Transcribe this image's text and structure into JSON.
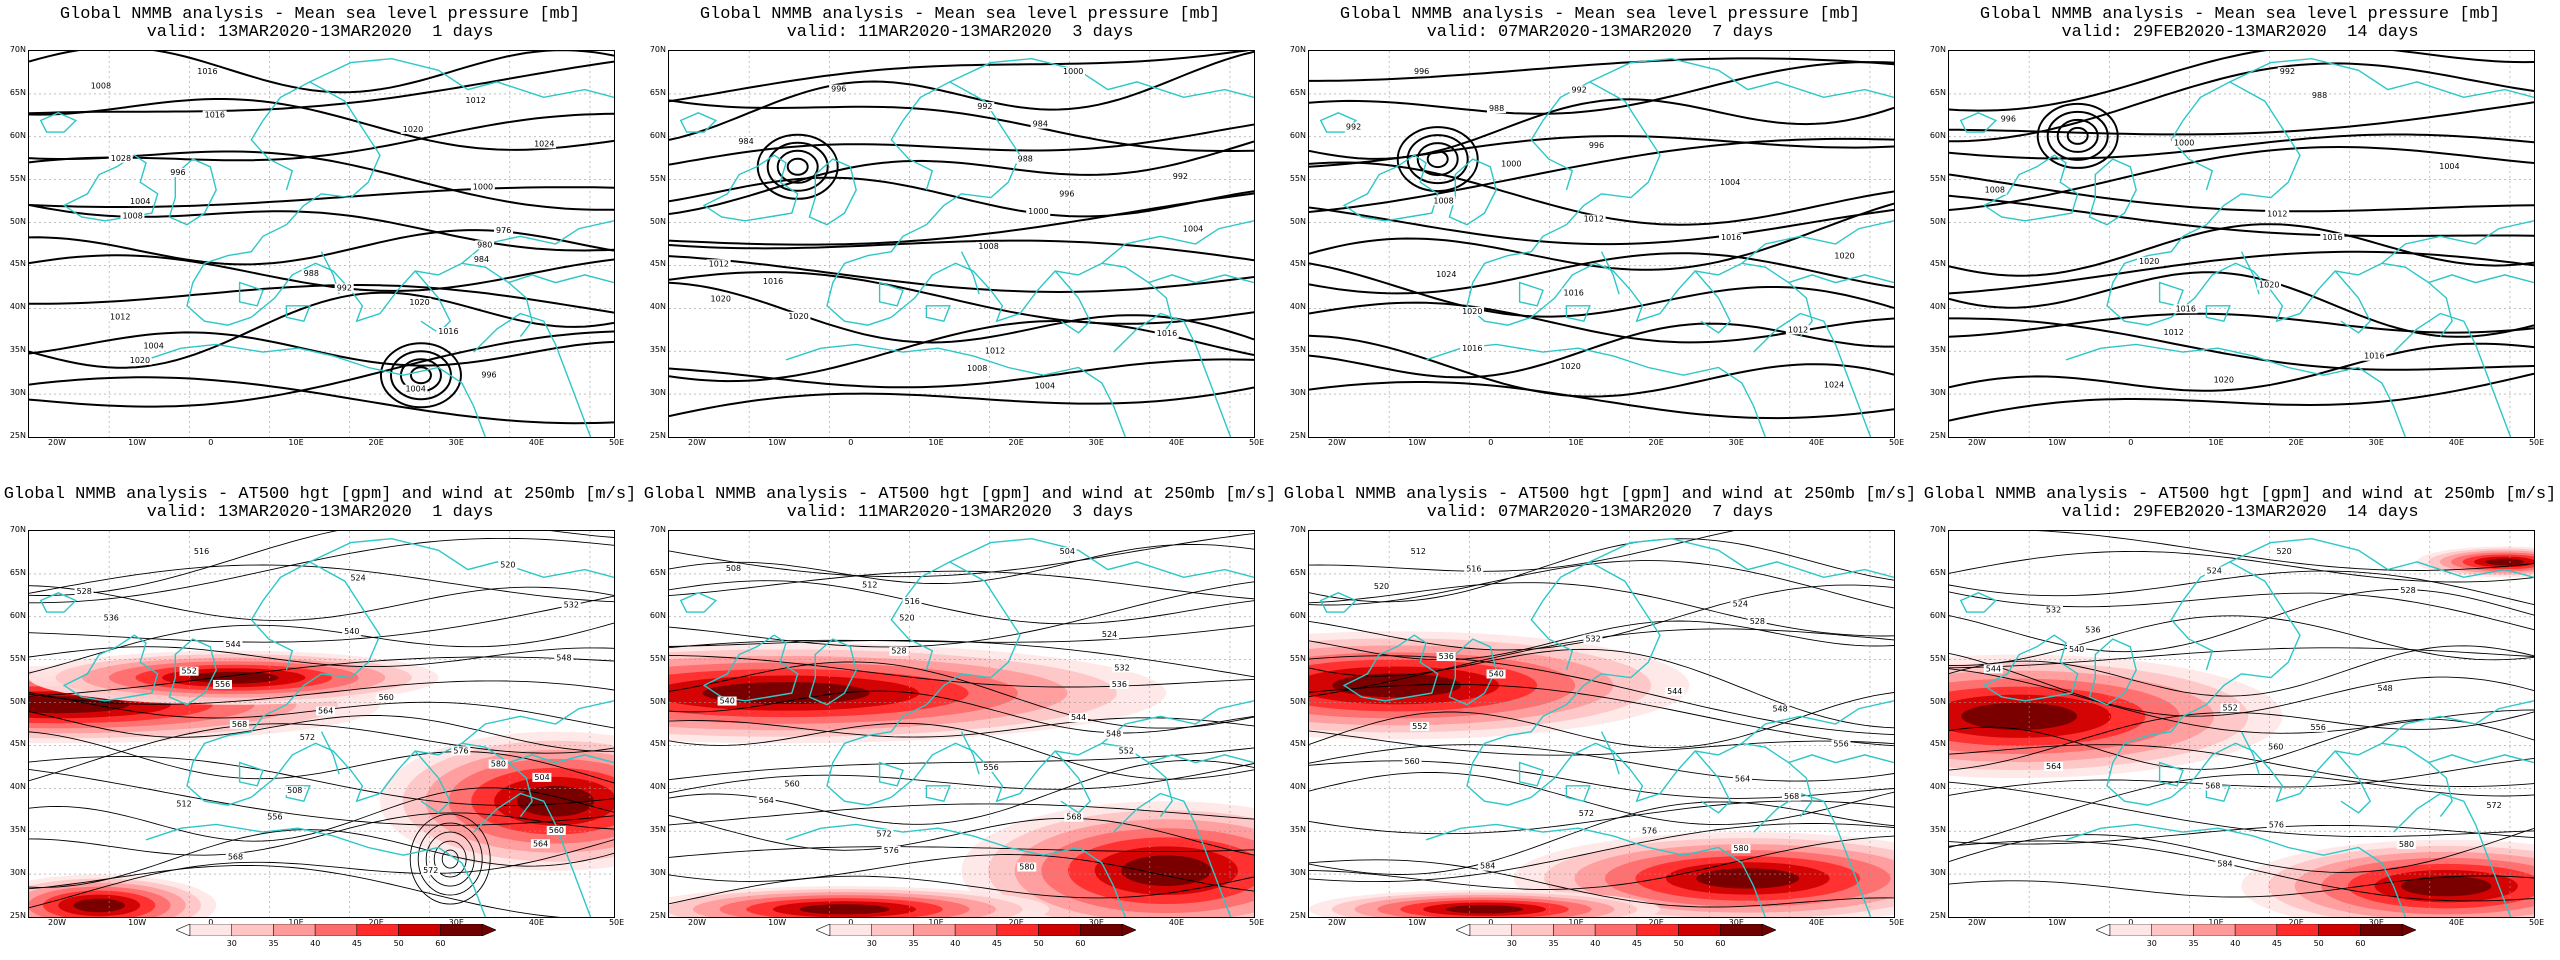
{
  "axes": {
    "lat_labels": [
      "70N",
      "65N",
      "60N",
      "55N",
      "50N",
      "45N",
      "40N",
      "35N",
      "30N",
      "25N"
    ],
    "lon_labels": [
      "20W",
      "10W",
      "0",
      "10E",
      "20E",
      "30E",
      "40E",
      "50E"
    ]
  },
  "colorbar": {
    "ticks": [
      "30",
      "35",
      "40",
      "45",
      "50",
      "60"
    ],
    "colors": [
      "#ffe6e6",
      "#ffc4c4",
      "#ff9a9a",
      "#ff6a6a",
      "#ff2a2a",
      "#d00000",
      "#700000"
    ]
  },
  "colors": {
    "coastline": "#2ec7c7",
    "contour": "#000000",
    "grid": "#999999"
  },
  "top_row": [
    {
      "title": "Global NMMB analysis - Mean sea level pressure [mb]",
      "valid": "valid: 13MAR2020-13MAR2020  1 days",
      "labels": [
        "1016",
        "1008",
        "1012",
        "1016",
        "1020",
        "1024",
        "1028",
        "996",
        "1000",
        "1004",
        "1008",
        "976",
        "980",
        "984",
        "988",
        "992",
        "1020",
        "1012",
        "1016",
        "1004",
        "1020",
        "996",
        "1004"
      ]
    },
    {
      "title": "Global NMMB analysis - Mean sea level pressure [mb]",
      "valid": "valid: 11MAR2020-13MAR2020  3 days",
      "labels": [
        "1000",
        "996",
        "992",
        "984",
        "984",
        "988",
        "992",
        "996",
        "1000",
        "1004",
        "1008",
        "1012",
        "1016",
        "1020",
        "1020",
        "1016",
        "1012",
        "1008",
        "1004"
      ]
    },
    {
      "title": "Global NMMB analysis - Mean sea level pressure [mb]",
      "valid": "valid: 07MAR2020-13MAR2020  7 days",
      "labels": [
        "996",
        "992",
        "988",
        "992",
        "996",
        "1000",
        "1004",
        "1008",
        "1012",
        "1016",
        "1020",
        "1024",
        "1016",
        "1020",
        "1012",
        "1016",
        "1020",
        "1024"
      ]
    },
    {
      "title": "Global NMMB analysis - Mean sea level pressure [mb]",
      "valid": "valid: 29FEB2020-13MAR2020  14 days",
      "labels": [
        "992",
        "988",
        "996",
        "1000",
        "1004",
        "1008",
        "1012",
        "1016",
        "1020",
        "1020",
        "1016",
        "1012",
        "1016",
        "1020"
      ]
    }
  ],
  "bottom_row": [
    {
      "title": "Global NMMB analysis - AT500 hgt [gpm] and wind at 250mb [m/s]",
      "valid": "valid: 13MAR2020-13MAR2020  1 days",
      "labels": [
        "516",
        "520",
        "524",
        "528",
        "532",
        "536",
        "540",
        "544",
        "548",
        "552",
        "556",
        "560",
        "564",
        "568",
        "572",
        "576",
        "580",
        "504",
        "508",
        "512",
        "556",
        "560",
        "564",
        "568",
        "572"
      ]
    },
    {
      "title": "Global NMMB analysis - AT500 hgt [gpm] and wind at 250mb [m/s]",
      "valid": "valid: 11MAR2020-13MAR2020  3 days",
      "labels": [
        "504",
        "508",
        "512",
        "516",
        "520",
        "524",
        "528",
        "532",
        "536",
        "540",
        "544",
        "548",
        "552",
        "556",
        "560",
        "564",
        "568",
        "572",
        "576",
        "580"
      ]
    },
    {
      "title": "Global NMMB analysis - AT500 hgt [gpm] and wind at 250mb [m/s]",
      "valid": "valid: 07MAR2020-13MAR2020  7 days",
      "labels": [
        "512",
        "516",
        "520",
        "524",
        "528",
        "532",
        "536",
        "540",
        "544",
        "548",
        "552",
        "556",
        "560",
        "564",
        "568",
        "572",
        "576",
        "580",
        "584"
      ]
    },
    {
      "title": "Global NMMB analysis - AT500 hgt [gpm] and wind at 250mb [m/s]",
      "valid": "valid: 29FEB2020-13MAR2020  14 days",
      "labels": [
        "520",
        "524",
        "528",
        "532",
        "536",
        "540",
        "544",
        "548",
        "552",
        "556",
        "560",
        "564",
        "568",
        "572",
        "576",
        "580",
        "584"
      ]
    }
  ]
}
